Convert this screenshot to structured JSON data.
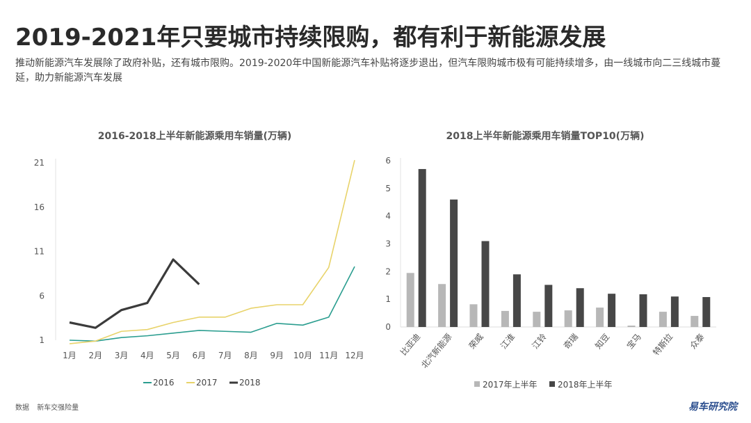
{
  "page": {
    "title": "2019-2021年只要城市持续限购，都有利于新能源发展",
    "subtitle": "推动新能源汽车发展除了政府补贴，还有城市限购。2019-2020年中国新能源汽车补贴将逐步退出，但汽车限购城市极有可能持续增多，由一线城市向二三线城市蔓延，助力新能源汽车发展",
    "source_label": "数据",
    "source_value": "新车交强险量",
    "brand": "易车研究院"
  },
  "colors": {
    "s2016": "#2a9d8f",
    "s2017": "#e8d36a",
    "s2018": "#3b3b3b",
    "bar2017": "#b7b7b7",
    "bar2018": "#474747"
  },
  "chart_data": [
    {
      "type": "line",
      "title": "2016-2018上半年新能源乘用车销量(万辆)",
      "x": [
        "1月",
        "2月",
        "3月",
        "4月",
        "5月",
        "6月",
        "7月",
        "8月",
        "9月",
        "10月",
        "11月",
        "12月"
      ],
      "yticks": [
        1,
        6,
        11,
        16,
        21
      ],
      "ylim": [
        1,
        21
      ],
      "grid": false,
      "legend_position": "bottom",
      "series": [
        {
          "name": "2016",
          "values": [
            1.0,
            0.9,
            1.3,
            1.5,
            1.8,
            2.1,
            2.0,
            1.9,
            2.9,
            2.7,
            3.6,
            9.3
          ]
        },
        {
          "name": "2017",
          "values": [
            0.6,
            0.9,
            2.0,
            2.2,
            3.0,
            3.6,
            3.6,
            4.6,
            5.0,
            5.0,
            9.2,
            21.3
          ]
        },
        {
          "name": "2018",
          "values": [
            3.0,
            2.4,
            4.4,
            5.2,
            10.1,
            7.3,
            null,
            null,
            null,
            null,
            null,
            null
          ]
        }
      ]
    },
    {
      "type": "bar",
      "title": "2018上半年新能源乘用车销量TOP10(万辆)",
      "categories": [
        "比亚迪",
        "北汽新能源",
        "荣威",
        "江淮",
        "江铃",
        "奇瑞",
        "知豆",
        "宝马",
        "特斯拉",
        "众泰"
      ],
      "yticks": [
        0,
        1,
        2,
        3,
        4,
        5,
        6
      ],
      "ylim": [
        0,
        6
      ],
      "grid": false,
      "legend_position": "bottom",
      "series": [
        {
          "name": "2017年上半年",
          "values": [
            1.95,
            1.55,
            0.82,
            0.58,
            0.55,
            0.6,
            0.7,
            0.05,
            0.55,
            0.4
          ]
        },
        {
          "name": "2018年上半年",
          "values": [
            5.7,
            4.6,
            3.1,
            1.9,
            1.52,
            1.4,
            1.2,
            1.18,
            1.1,
            1.08
          ]
        }
      ]
    }
  ]
}
